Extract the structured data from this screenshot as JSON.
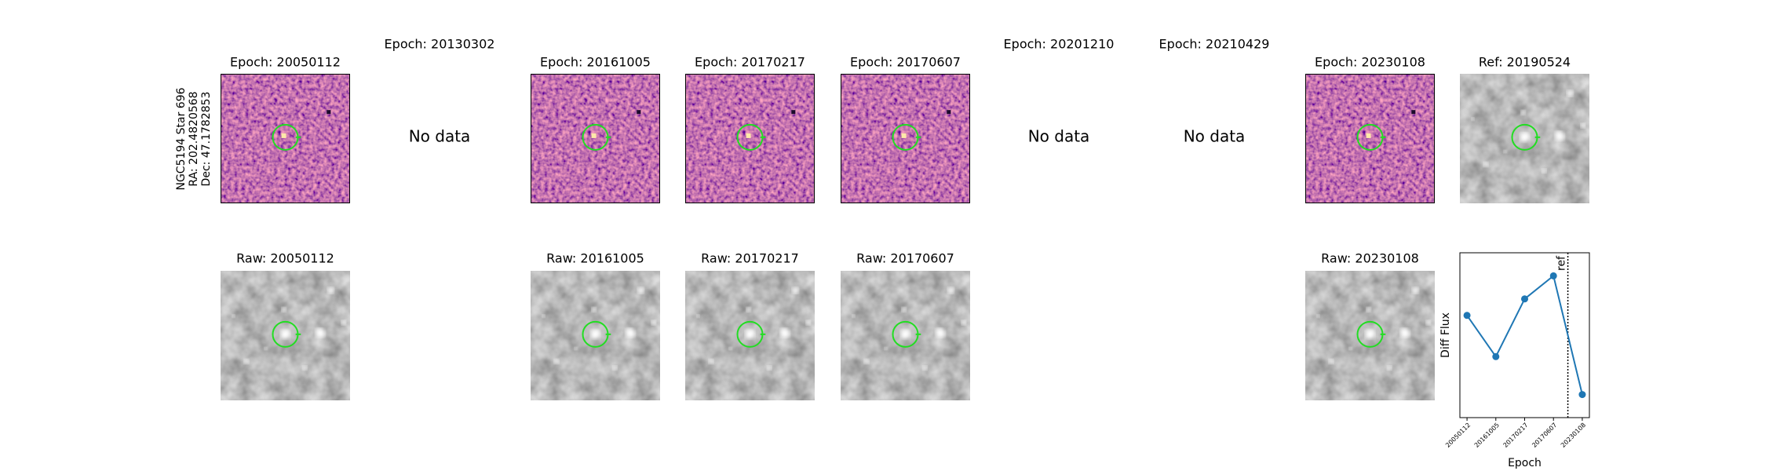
{
  "row_label": [
    "NGC5194 Star 696",
    "RA: 202.4820568",
    "Dec: 47.1782853"
  ],
  "top_panels": [
    {
      "title": "Epoch: 20050112",
      "kind": "diff"
    },
    {
      "title": "Epoch: 20130302",
      "kind": "empty",
      "message": "No data"
    },
    {
      "title": "Epoch: 20161005",
      "kind": "diff"
    },
    {
      "title": "Epoch: 20170217",
      "kind": "diff"
    },
    {
      "title": "Epoch: 20170607",
      "kind": "diff"
    },
    {
      "title": "Epoch: 20201210",
      "kind": "empty",
      "message": "No data"
    },
    {
      "title": "Epoch: 20210429",
      "kind": "empty",
      "message": "No data"
    },
    {
      "title": "Epoch: 20230108",
      "kind": "diff"
    },
    {
      "title": "Ref: 20190524",
      "kind": "raw"
    }
  ],
  "bottom_panels": [
    "Raw: 20050112",
    null,
    "Raw: 20161005",
    "Raw: 20170217",
    "Raw: 20170607",
    null,
    null,
    "Raw: 20230108"
  ],
  "chart_data": {
    "type": "line",
    "x_label": "Epoch",
    "y_label": "Diff Flux",
    "categories": [
      "20050112",
      "20161005",
      "20170217",
      "20170607",
      "20230108"
    ],
    "values": [
      62,
      37,
      72,
      86,
      14
    ],
    "color": "#1f77b4",
    "ylim": [
      0,
      100
    ],
    "ref_label": "ref"
  }
}
